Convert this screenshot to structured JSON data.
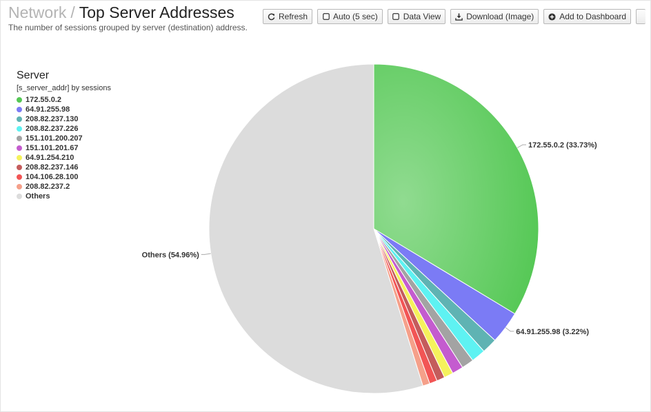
{
  "header": {
    "breadcrumb_parent": "Network",
    "breadcrumb_separator": "/",
    "title": "Top Server Addresses",
    "subtitle": "The number of sessions grouped by server (destination) address."
  },
  "toolbar": {
    "refresh_label": "Refresh",
    "auto_label": "Auto (5 sec)",
    "data_view_label": "Data View",
    "download_label": "Download (Image)",
    "add_dashboard_label": "Add to Dashboard"
  },
  "legend": {
    "title": "Server",
    "subtitle": "[s_server_addr] by sessions"
  },
  "chart_data": {
    "type": "pie",
    "slices": [
      {
        "label": "172.55.0.2",
        "value": 33.73,
        "color": "#55c855"
      },
      {
        "label": "64.91.255.98",
        "value": 3.22,
        "color": "#7b7bf5"
      },
      {
        "label": "208.82.237.130",
        "value": 1.5,
        "color": "#5fb3b3"
      },
      {
        "label": "208.82.237.226",
        "value": 1.4,
        "color": "#5ef2f2"
      },
      {
        "label": "151.101.200.207",
        "value": 1.2,
        "color": "#a3a3a3"
      },
      {
        "label": "151.101.201.67",
        "value": 1.1,
        "color": "#c45ccf"
      },
      {
        "label": "64.91.254.210",
        "value": 0.9,
        "color": "#f5f25c"
      },
      {
        "label": "208.82.237.146",
        "value": 0.8,
        "color": "#c45c5c"
      },
      {
        "label": "104.106.28.100",
        "value": 0.75,
        "color": "#f25555"
      },
      {
        "label": "208.82.237.2",
        "value": 0.7,
        "color": "#f5a08a"
      },
      {
        "label": "Others",
        "value": 54.96,
        "color": "#dcdcdc"
      }
    ],
    "data_labels": [
      {
        "label": "172.55.0.2",
        "text": "172.55.0.2 (33.73%)"
      },
      {
        "label": "64.91.255.98",
        "text": "64.91.255.98 (3.22%)"
      },
      {
        "label": "Others",
        "text": "Others (54.96%)"
      }
    ]
  }
}
